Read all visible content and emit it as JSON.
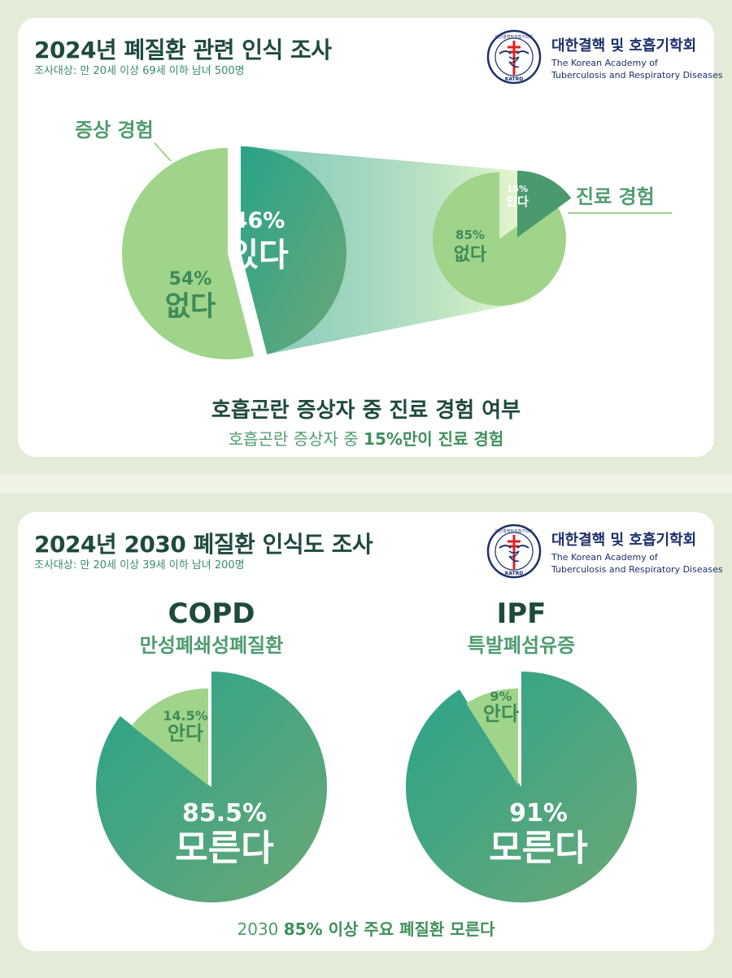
{
  "panel1": {
    "title": "2024년 폐질환 관련 인식 조사",
    "subtitle": "조사대상: 만 20세 이상 69세 이하 남녀 500명",
    "caption_main": "호흡곤란 증상자 중 진료 경험 여부",
    "caption_sub_prefix": "호흡곤란 증상자 중 ",
    "caption_sub_bold": "15%만이 진료 경험"
  },
  "panel2": {
    "title": "2024년 2030 폐질환 인식도 조사",
    "subtitle": "조사대상: 만 20세 이상 39세 이하 남녀 200명",
    "caption_prefix": "2030 ",
    "caption_bold": "85% 이상 주요 폐질환 모른다"
  },
  "logo": {
    "name_kr": "대한결핵 및 호흡기학회",
    "name_en_line1": "The Korean Academy of",
    "name_en_line2": "Tuberculosis and Respiratory Diseases",
    "seal_text_top": "대한결핵및호흡기학회",
    "seal_text_bottom": "KATRD"
  },
  "colors": {
    "dark_green": "#2f8f6a",
    "teal": "#2aa38a",
    "light_green": "#9fd48a",
    "title_green": "#1f4a3e",
    "label_green": "#4f9c70"
  },
  "chart_data": [
    {
      "type": "pie",
      "title": "증상 경험",
      "slices": [
        {
          "label": "있다",
          "value": 46,
          "display": "46%"
        },
        {
          "label": "없다",
          "value": 54,
          "display": "54%"
        }
      ]
    },
    {
      "type": "pie",
      "title": "진료 경험",
      "slices": [
        {
          "label": "있다",
          "value": 15,
          "display": "15%"
        },
        {
          "label": "없다",
          "value": 85,
          "display": "85%"
        }
      ]
    },
    {
      "type": "pie",
      "title": "COPD",
      "subtitle": "만성폐쇄성폐질환",
      "slices": [
        {
          "label": "모른다",
          "value": 85.5,
          "display": "85.5%"
        },
        {
          "label": "안다",
          "value": 14.5,
          "display": "14.5%"
        }
      ]
    },
    {
      "type": "pie",
      "title": "IPF",
      "subtitle": "특발폐섬유증",
      "slices": [
        {
          "label": "모른다",
          "value": 91,
          "display": "91%"
        },
        {
          "label": "안다",
          "value": 9,
          "display": "9%"
        }
      ]
    }
  ]
}
